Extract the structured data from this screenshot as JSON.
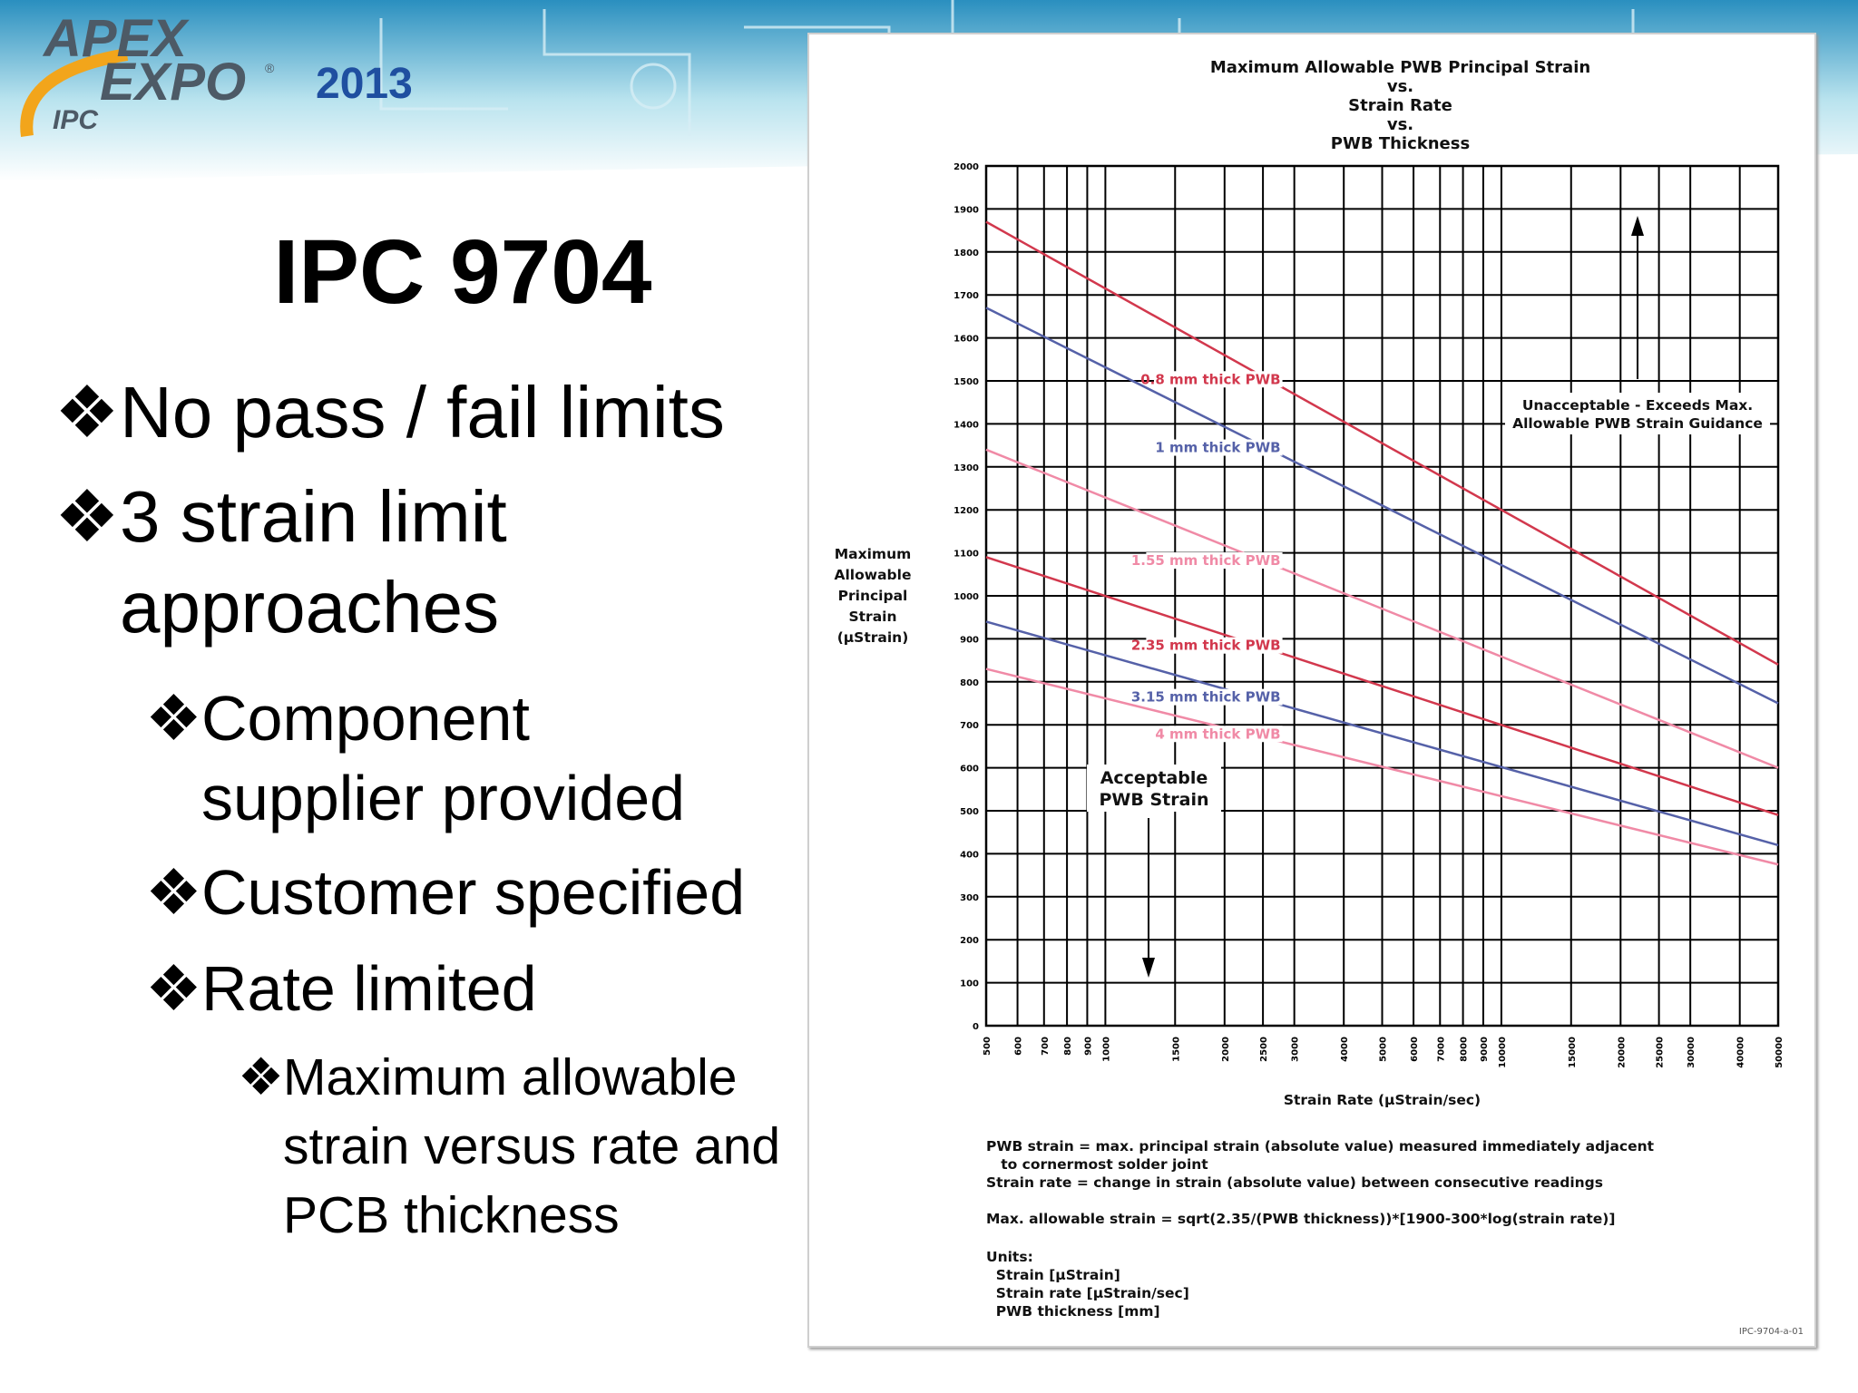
{
  "brand": {
    "line1": "APEX",
    "line2": "EXPO",
    "registered": "®",
    "org": "IPC",
    "year": "2013",
    "colors": {
      "banner_top": "#2a8fbf",
      "banner_mid": "#b9e3ee",
      "logo_text": "#4d5a66",
      "year_text": "#1f4fa0",
      "accent": "#f2a51b"
    }
  },
  "slide": {
    "title": "IPC 9704",
    "bullet_glyph": "❖",
    "bullets": [
      {
        "level": 1,
        "text": "No pass / fail limits"
      },
      {
        "level": 1,
        "text": "3 strain limit approaches"
      },
      {
        "level": 2,
        "text": "Component supplier provided"
      },
      {
        "level": 2,
        "text": "Customer specified"
      },
      {
        "level": 2,
        "text": "Rate limited"
      },
      {
        "level": 3,
        "text": "Maximum allowable strain versus rate and PCB thickness"
      }
    ]
  },
  "chart_data": {
    "type": "line",
    "title": [
      "Maximum Allowable PWB Principal Strain",
      "vs.",
      "Strain Rate",
      "vs.",
      "PWB Thickness"
    ],
    "xlabel": "Strain Rate (µStrain/sec)",
    "ylabel": [
      "Maximum",
      "Allowable",
      "Principal",
      "Strain",
      "(µStrain)"
    ],
    "x_scale": "log",
    "xlim": [
      500,
      50000
    ],
    "ylim": [
      0,
      2000
    ],
    "grid": true,
    "x_ticks": [
      500,
      600,
      700,
      800,
      900,
      1000,
      1500,
      2000,
      2500,
      3000,
      4000,
      5000,
      6000,
      7000,
      8000,
      9000,
      10000,
      15000,
      20000,
      25000,
      30000,
      40000,
      50000
    ],
    "x_tick_labels": [
      "500",
      "600",
      "700",
      "800",
      "900",
      "1000",
      "1500",
      "2000",
      "2500",
      "3000",
      "4000",
      "5000",
      "6000",
      "7000",
      "8000",
      "9000",
      "10000",
      "15000",
      "20000",
      "25000",
      "30000",
      "40000",
      "50000"
    ],
    "y_ticks": [
      0,
      100,
      200,
      300,
      400,
      500,
      600,
      700,
      800,
      900,
      1000,
      1100,
      1200,
      1300,
      1400,
      1500,
      1600,
      1700,
      1800,
      1900,
      2000
    ],
    "series": [
      {
        "name": "0.8 mm thick PWB",
        "x": [
          500,
          50000
        ],
        "y": [
          1870,
          840
        ],
        "color": "#d2384d"
      },
      {
        "name": "1 mm thick PWB",
        "x": [
          500,
          50000
        ],
        "y": [
          1670,
          750
        ],
        "color": "#5561a8"
      },
      {
        "name": "1.55 mm thick PWB",
        "x": [
          500,
          50000
        ],
        "y": [
          1340,
          600
        ],
        "color": "#f08aa6"
      },
      {
        "name": "2.35 mm thick PWB",
        "x": [
          500,
          50000
        ],
        "y": [
          1090,
          490
        ],
        "color": "#d2384d"
      },
      {
        "name": "3.15 mm thick PWB",
        "x": [
          500,
          50000
        ],
        "y": [
          940,
          420
        ],
        "color": "#5561a8"
      },
      {
        "name": "4 mm thick PWB",
        "x": [
          500,
          50000
        ],
        "y": [
          830,
          375
        ],
        "color": "#f08aa6"
      }
    ],
    "annotations": {
      "unacceptable": [
        "Unacceptable - Exceeds Max.",
        "Allowable PWB Strain Guidance"
      ],
      "acceptable": [
        "Acceptable",
        "PWB Strain"
      ]
    }
  },
  "figure_notes": {
    "definitions": [
      "PWB strain = max. principal strain (absolute value) measured immediately adjacent",
      "   to cornermost solder joint",
      "Strain rate = change in strain (absolute value) between consecutive readings"
    ],
    "formula": "Max. allowable strain = sqrt(2.35/(PWB thickness))*[1900-300*log(strain rate)]",
    "units": [
      "Units:",
      "  Strain [µStrain]",
      "  Strain rate [µStrain/sec]",
      "  PWB thickness [mm]"
    ],
    "doc_id": "IPC-9704-a-01"
  }
}
